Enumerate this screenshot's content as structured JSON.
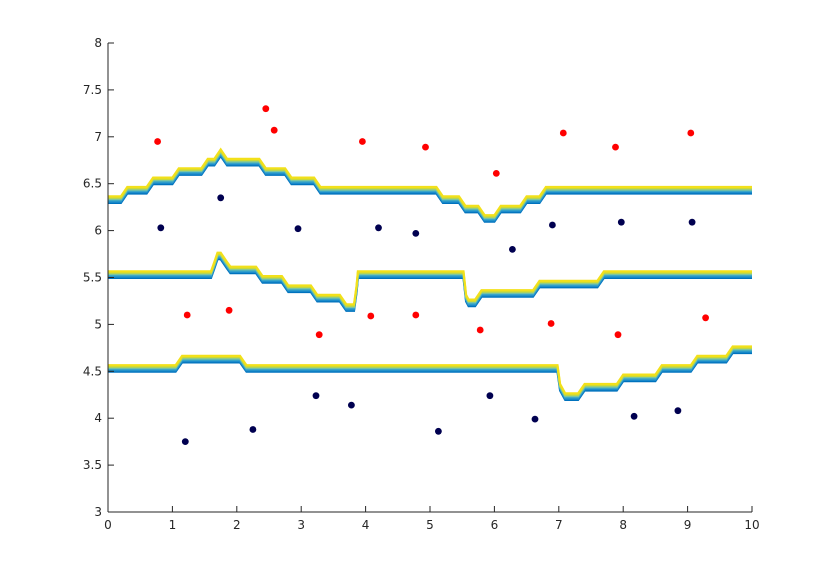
{
  "chart_data": {
    "type": "scatter",
    "title": "",
    "xlabel": "",
    "ylabel": "",
    "xlim": [
      0,
      10
    ],
    "ylim": [
      3,
      8
    ],
    "grid": false,
    "xticks": [
      0,
      1,
      2,
      3,
      4,
      5,
      6,
      7,
      8,
      9,
      10
    ],
    "yticks": [
      3,
      3.5,
      4,
      4.5,
      5,
      5.5,
      6,
      6.5,
      7,
      7.5,
      8
    ],
    "xtick_labels": [
      "0",
      "1",
      "2",
      "3",
      "4",
      "5",
      "6",
      "7",
      "8",
      "9",
      "10"
    ],
    "ytick_labels": [
      "3",
      "3.5",
      "4",
      "4.5",
      "5",
      "5.5",
      "6",
      "6.5",
      "7",
      "7.5",
      "8"
    ],
    "colors": {
      "class_a": "#ff0000",
      "class_b": "#000050",
      "contour_levels": [
        "#0072bd",
        "#1c8ccc",
        "#3aa6c8",
        "#7cc6a0",
        "#c9d93a",
        "#f2e01a"
      ]
    },
    "series": [
      {
        "color": "#ff0000",
        "points": [
          [
            0.77,
            6.95
          ],
          [
            1.23,
            5.1
          ],
          [
            1.88,
            5.15
          ],
          [
            2.45,
            7.3
          ],
          [
            2.58,
            7.07
          ],
          [
            3.28,
            4.89
          ],
          [
            3.95,
            6.95
          ],
          [
            4.08,
            5.09
          ],
          [
            4.78,
            5.1
          ],
          [
            4.93,
            6.89
          ],
          [
            5.78,
            4.94
          ],
          [
            6.03,
            6.61
          ],
          [
            6.88,
            5.01
          ],
          [
            7.07,
            7.04
          ],
          [
            7.88,
            6.89
          ],
          [
            7.92,
            4.89
          ],
          [
            9.05,
            7.04
          ],
          [
            9.28,
            5.07
          ]
        ]
      },
      {
        "color": "#000050",
        "points": [
          [
            0.82,
            6.03
          ],
          [
            1.2,
            3.75
          ],
          [
            1.75,
            6.35
          ],
          [
            2.25,
            3.88
          ],
          [
            2.95,
            6.02
          ],
          [
            3.23,
            4.24
          ],
          [
            3.78,
            4.14
          ],
          [
            4.2,
            6.03
          ],
          [
            4.78,
            5.97
          ],
          [
            5.13,
            3.86
          ],
          [
            5.93,
            4.24
          ],
          [
            6.28,
            5.8
          ],
          [
            6.63,
            3.99
          ],
          [
            6.9,
            6.06
          ],
          [
            7.97,
            6.09
          ],
          [
            8.17,
            4.02
          ],
          [
            8.85,
            4.08
          ],
          [
            9.07,
            6.09
          ]
        ]
      }
    ],
    "boundaries": [
      [
        [
          0,
          6.33
        ],
        [
          0.2,
          6.33
        ],
        [
          0.3,
          6.43
        ],
        [
          0.6,
          6.43
        ],
        [
          0.7,
          6.53
        ],
        [
          1.0,
          6.53
        ],
        [
          1.1,
          6.63
        ],
        [
          1.45,
          6.63
        ],
        [
          1.55,
          6.73
        ],
        [
          1.65,
          6.73
        ],
        [
          1.75,
          6.83
        ],
        [
          1.85,
          6.73
        ],
        [
          2.35,
          6.73
        ],
        [
          2.45,
          6.63
        ],
        [
          2.75,
          6.63
        ],
        [
          2.85,
          6.53
        ],
        [
          3.2,
          6.53
        ],
        [
          3.3,
          6.43
        ],
        [
          5.1,
          6.43
        ],
        [
          5.2,
          6.33
        ],
        [
          5.45,
          6.33
        ],
        [
          5.55,
          6.23
        ],
        [
          5.75,
          6.23
        ],
        [
          5.85,
          6.13
        ],
        [
          6.0,
          6.13
        ],
        [
          6.1,
          6.23
        ],
        [
          6.4,
          6.23
        ],
        [
          6.5,
          6.33
        ],
        [
          6.7,
          6.33
        ],
        [
          6.8,
          6.43
        ],
        [
          10,
          6.43
        ]
      ],
      [
        [
          0,
          5.53
        ],
        [
          1.6,
          5.53
        ],
        [
          1.65,
          5.63
        ],
        [
          1.7,
          5.73
        ],
        [
          1.75,
          5.73
        ],
        [
          1.85,
          5.63
        ],
        [
          1.9,
          5.58
        ],
        [
          2.3,
          5.58
        ],
        [
          2.4,
          5.48
        ],
        [
          2.7,
          5.48
        ],
        [
          2.8,
          5.38
        ],
        [
          3.15,
          5.38
        ],
        [
          3.25,
          5.28
        ],
        [
          3.6,
          5.28
        ],
        [
          3.7,
          5.18
        ],
        [
          3.82,
          5.18
        ],
        [
          3.86,
          5.38
        ],
        [
          3.88,
          5.53
        ],
        [
          5.52,
          5.53
        ],
        [
          5.56,
          5.28
        ],
        [
          5.6,
          5.23
        ],
        [
          5.7,
          5.23
        ],
        [
          5.8,
          5.33
        ],
        [
          6.6,
          5.33
        ],
        [
          6.7,
          5.43
        ],
        [
          7.6,
          5.43
        ],
        [
          7.7,
          5.53
        ],
        [
          10,
          5.53
        ]
      ],
      [
        [
          0,
          4.53
        ],
        [
          1.05,
          4.53
        ],
        [
          1.15,
          4.63
        ],
        [
          2.05,
          4.63
        ],
        [
          2.15,
          4.53
        ],
        [
          6.98,
          4.53
        ],
        [
          7.02,
          4.33
        ],
        [
          7.1,
          4.23
        ],
        [
          7.3,
          4.23
        ],
        [
          7.4,
          4.33
        ],
        [
          7.9,
          4.33
        ],
        [
          8.0,
          4.43
        ],
        [
          8.5,
          4.43
        ],
        [
          8.6,
          4.53
        ],
        [
          9.05,
          4.53
        ],
        [
          9.15,
          4.63
        ],
        [
          9.6,
          4.63
        ],
        [
          9.7,
          4.73
        ],
        [
          10,
          4.73
        ]
      ]
    ]
  }
}
